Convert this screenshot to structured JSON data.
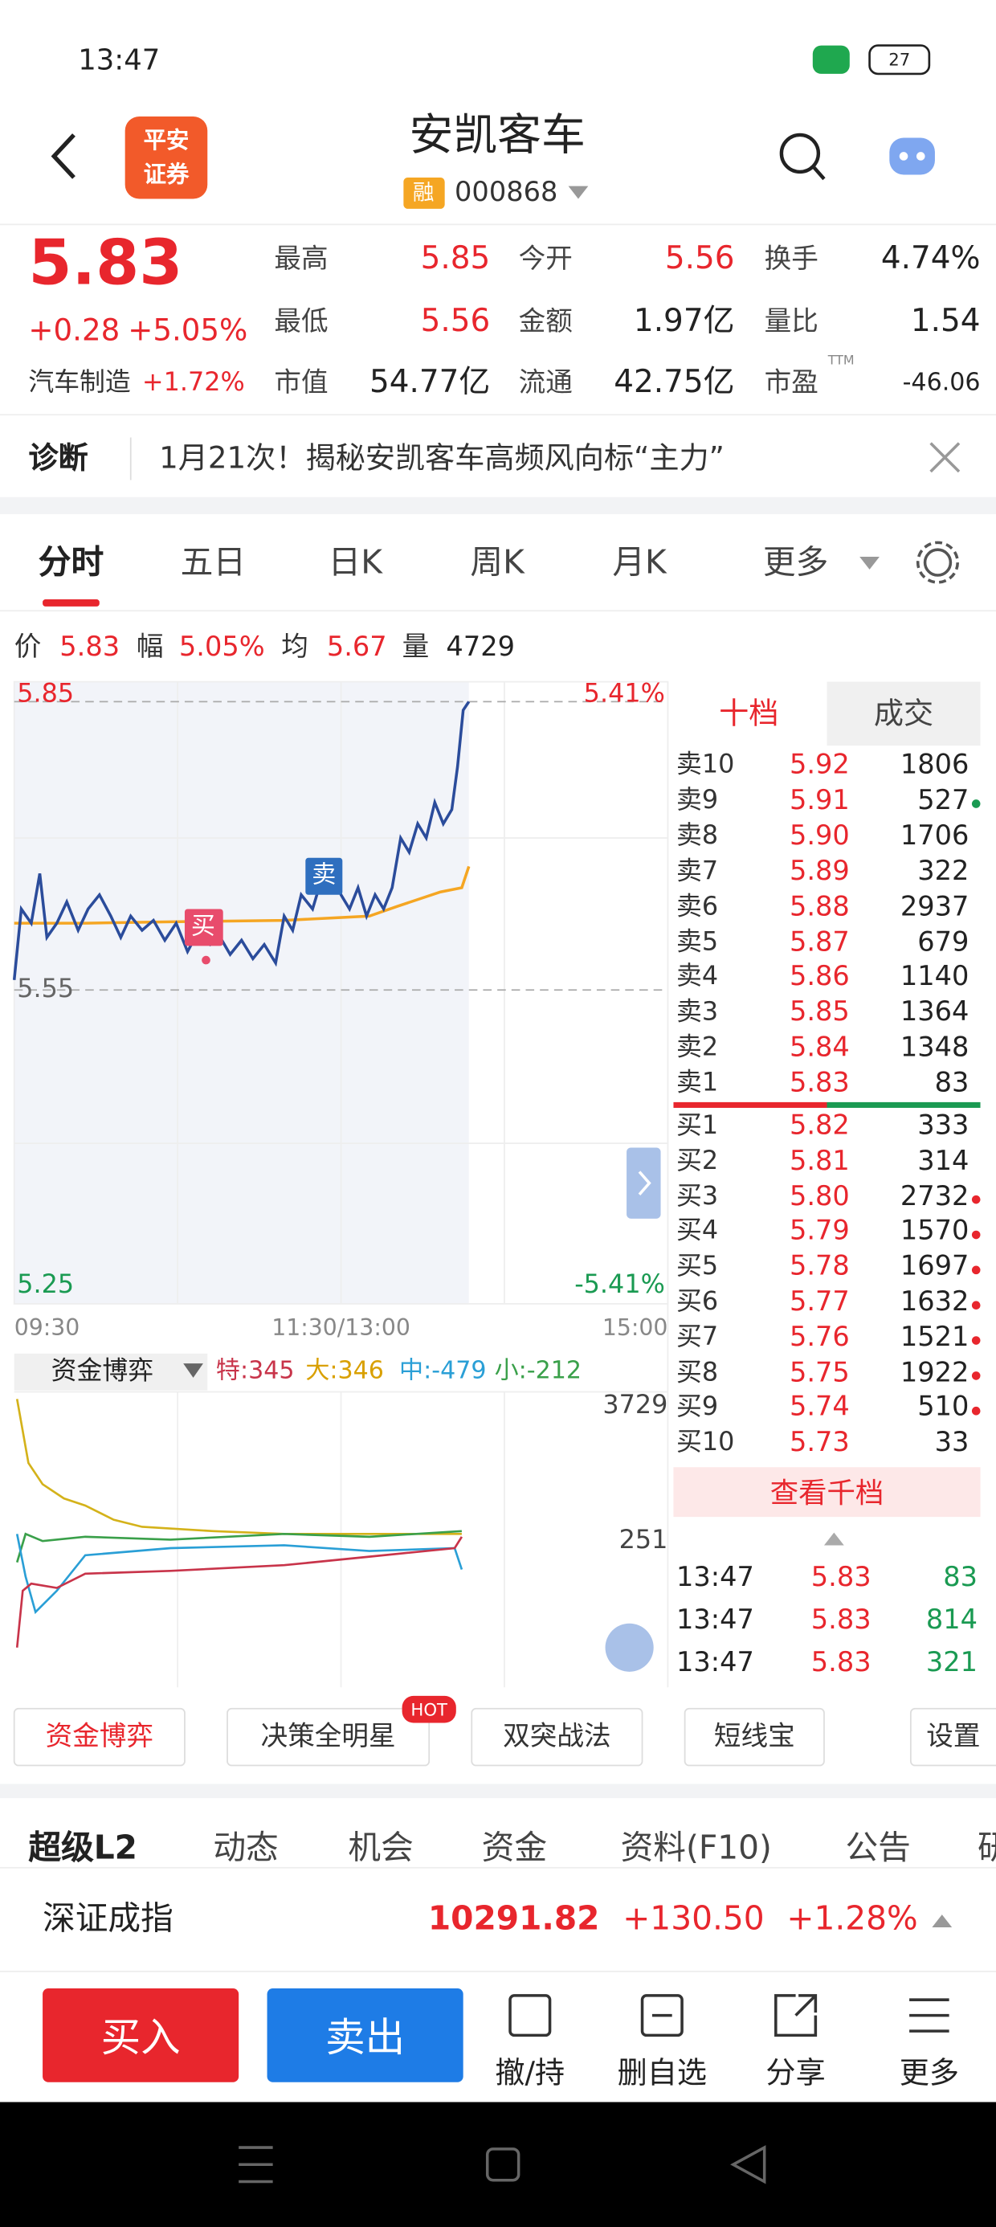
{
  "status_bar": {
    "time": "13:47",
    "battery": "27"
  },
  "header": {
    "logo": [
      "平安",
      "证券"
    ],
    "title": "安凯客车",
    "badge": "融",
    "code": "000868"
  },
  "quote": {
    "price": "5.83",
    "change": "+0.28",
    "change_pct": "+5.05%",
    "sector": "汽车制造",
    "sector_change": "+1.72%",
    "stats": [
      [
        "最高",
        "5.85"
      ],
      [
        "今开",
        "5.56"
      ],
      [
        "换手",
        "4.74%"
      ],
      [
        "最低",
        "5.56"
      ],
      [
        "金额",
        "1.97亿"
      ],
      [
        "量比",
        "1.54"
      ],
      [
        "市值",
        "54.77亿"
      ],
      [
        "流通",
        "42.75亿"
      ],
      [
        "市盈",
        "-46.06"
      ]
    ],
    "ttm": "TTM"
  },
  "notice": {
    "label": "诊断",
    "text": "1月21次！揭秘安凯客车高频风向标“主力”"
  },
  "tabs": [
    "分时",
    "五日",
    "日K",
    "周K",
    "月K",
    "更多"
  ],
  "info_bar": [
    [
      "价",
      "5.83"
    ],
    [
      "幅",
      "5.05%"
    ],
    [
      "均",
      "5.67"
    ],
    [
      "量",
      "4729"
    ]
  ],
  "chart": {
    "y_top": "5.85",
    "y_top_pct": "5.41%",
    "y_mid": "5.55",
    "y_bot": "5.25",
    "y_bot_pct": "-5.41%",
    "x_labels": [
      "09:30",
      "11:30/13:00",
      "15:00"
    ],
    "buy_marker": "买",
    "sell_marker": "卖"
  },
  "fund": {
    "title": "资金博弈",
    "items": [
      "特:345",
      "大:346",
      "中:-479",
      "小:-212"
    ],
    "top": "3729",
    "mid": "251"
  },
  "order_book": {
    "tabs": [
      "十档",
      "成交"
    ],
    "asks": [
      [
        "卖10",
        "5.92",
        "1806"
      ],
      [
        "卖9",
        "5.91",
        "527"
      ],
      [
        "卖8",
        "5.90",
        "1706"
      ],
      [
        "卖7",
        "5.89",
        "322"
      ],
      [
        "卖6",
        "5.88",
        "2937"
      ],
      [
        "卖5",
        "5.87",
        "679"
      ],
      [
        "卖4",
        "5.86",
        "1140"
      ],
      [
        "卖3",
        "5.85",
        "1364"
      ],
      [
        "卖2",
        "5.84",
        "1348"
      ],
      [
        "卖1",
        "5.83",
        "83"
      ]
    ],
    "bids": [
      [
        "买1",
        "5.82",
        "333"
      ],
      [
        "买2",
        "5.81",
        "314"
      ],
      [
        "买3",
        "5.80",
        "2732"
      ],
      [
        "买4",
        "5.79",
        "1570"
      ],
      [
        "买5",
        "5.78",
        "1697"
      ],
      [
        "买6",
        "5.77",
        "1632"
      ],
      [
        "买7",
        "5.76",
        "1521"
      ],
      [
        "买8",
        "5.75",
        "1922"
      ],
      [
        "买9",
        "5.74",
        "510"
      ],
      [
        "买10",
        "5.73",
        "33"
      ]
    ],
    "more": "查看千档",
    "trades": [
      [
        "13:47",
        "5.83",
        "83"
      ],
      [
        "13:47",
        "5.83",
        "814"
      ],
      [
        "13:47",
        "5.83",
        "321"
      ]
    ]
  },
  "tools": [
    "资金博弈",
    "决策全明星",
    "双突战法",
    "短线宝",
    "设置"
  ],
  "hot": "HOT",
  "sub_tabs": [
    "超级L2",
    "动态",
    "机会",
    "资金",
    "资料(F10)",
    "公告",
    "研"
  ],
  "index": {
    "name": "深证成指",
    "value": "10291.82",
    "change": "+130.50",
    "pct": "+1.28%"
  },
  "actions": {
    "buy": "买入",
    "sell": "卖出",
    "items": [
      "撤/持",
      "删自选",
      "分享",
      "更多"
    ]
  }
}
